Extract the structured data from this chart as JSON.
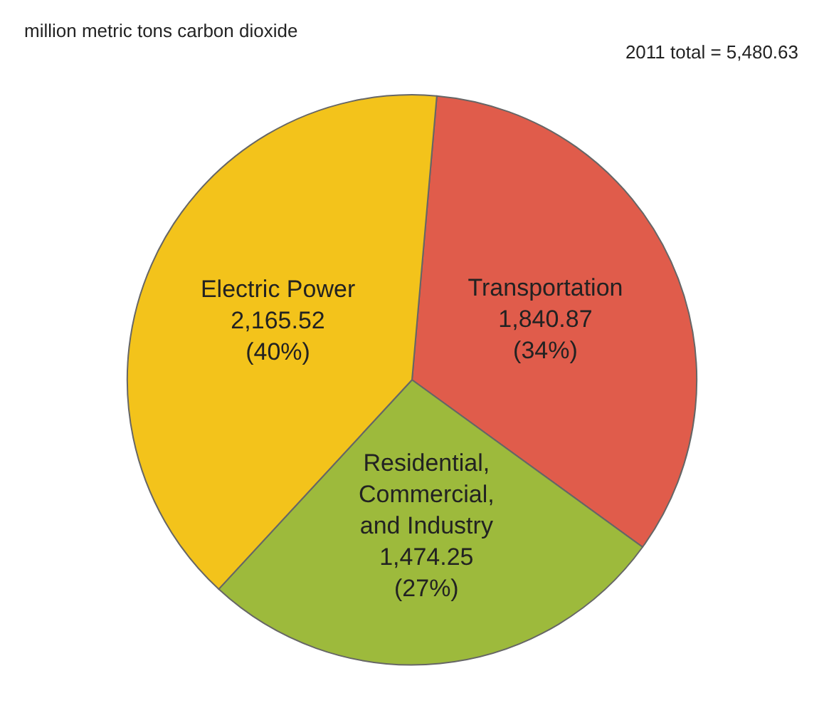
{
  "chart_data": {
    "type": "pie",
    "title": "million metric tons carbon dioxide",
    "annotations": [
      "2011 total = 5,480.63"
    ],
    "categories": [
      "Transportation",
      "Residential,\nCommercial,\nand Industry",
      "Electric Power"
    ],
    "values": [
      1840.87,
      1474.25,
      2165.52
    ],
    "value_labels": [
      "1,840.87\n(34%)",
      "1,474.25\n(27%)",
      "2,165.52\n(40%)"
    ],
    "colors": [
      "#e05c4b",
      "#9dba3c",
      "#f3c31b"
    ],
    "legend": false
  }
}
